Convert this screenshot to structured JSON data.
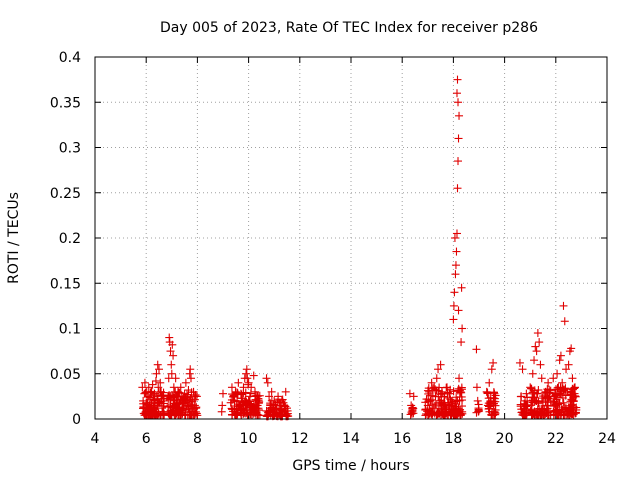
{
  "chart_data": {
    "type": "scatter",
    "title": "Day 005 of 2023, Rate Of TEC Index for receiver p286",
    "xlabel": "GPS time / hours",
    "ylabel": "ROTI / TECUs",
    "xlim": [
      4,
      24
    ],
    "ylim": [
      0,
      0.4
    ],
    "x_ticks": [
      4,
      6,
      8,
      10,
      12,
      14,
      16,
      18,
      20,
      22,
      24
    ],
    "x_tick_labels": [
      "4",
      "6",
      "8",
      "10",
      "12",
      "14",
      "16",
      "18",
      "20",
      "22",
      "24"
    ],
    "y_ticks": [
      0,
      0.05,
      0.1,
      0.15,
      0.2,
      0.25,
      0.3,
      0.35,
      0.4
    ],
    "y_tick_labels": [
      "0",
      "0.05",
      "0.1",
      "0.15",
      "0.2",
      "0.25",
      "0.3",
      "0.35",
      "0.4"
    ],
    "grid": true,
    "marker": "+",
    "color": "#e00000",
    "series": [
      {
        "name": "ROTI",
        "points": [
          [
            5.85,
            0.035
          ],
          [
            5.88,
            0.02
          ],
          [
            5.9,
            0.012
          ],
          [
            5.93,
            0.028
          ],
          [
            5.95,
            0.04
          ],
          [
            5.98,
            0.008
          ],
          [
            6.0,
            0.018
          ],
          [
            6.02,
            0.03
          ],
          [
            6.05,
            0.012
          ],
          [
            6.08,
            0.025
          ],
          [
            6.1,
            0.035
          ],
          [
            6.12,
            0.015
          ],
          [
            6.15,
            0.022
          ],
          [
            6.18,
            0.01
          ],
          [
            6.2,
            0.03
          ],
          [
            6.22,
            0.018
          ],
          [
            6.25,
            0.038
          ],
          [
            6.28,
            0.012
          ],
          [
            6.3,
            0.02
          ],
          [
            6.32,
            0.028
          ],
          [
            6.35,
            0.015
          ],
          [
            6.38,
            0.042
          ],
          [
            6.4,
            0.05
          ],
          [
            6.42,
            0.025
          ],
          [
            6.45,
            0.06
          ],
          [
            6.47,
            0.035
          ],
          [
            6.5,
            0.055
          ],
          [
            6.52,
            0.018
          ],
          [
            6.55,
            0.04
          ],
          [
            6.58,
            0.03
          ],
          [
            6.6,
            0.022
          ],
          [
            6.62,
            0.012
          ],
          [
            6.65,
            0.008
          ],
          [
            6.68,
            0.02
          ],
          [
            6.85,
            0.025
          ],
          [
            6.88,
            0.045
          ],
          [
            6.9,
            0.09
          ],
          [
            6.92,
            0.085
          ],
          [
            6.95,
            0.075
          ],
          [
            6.98,
            0.06
          ],
          [
            7.0,
            0.05
          ],
          [
            7.02,
            0.082
          ],
          [
            7.05,
            0.07
          ],
          [
            7.08,
            0.035
          ],
          [
            7.1,
            0.02
          ],
          [
            7.12,
            0.03
          ],
          [
            7.15,
            0.045
          ],
          [
            7.18,
            0.015
          ],
          [
            7.2,
            0.025
          ],
          [
            7.22,
            0.01
          ],
          [
            7.25,
            0.03
          ],
          [
            7.3,
            0.018
          ],
          [
            7.35,
            0.035
          ],
          [
            7.4,
            0.022
          ],
          [
            7.45,
            0.012
          ],
          [
            7.5,
            0.028
          ],
          [
            7.55,
            0.04
          ],
          [
            7.6,
            0.015
          ],
          [
            7.65,
            0.032
          ],
          [
            7.7,
            0.05
          ],
          [
            7.72,
            0.055
          ],
          [
            7.75,
            0.045
          ],
          [
            7.8,
            0.02
          ],
          [
            7.85,
            0.03
          ],
          [
            7.9,
            0.015
          ],
          [
            7.95,
            0.012
          ],
          [
            7.98,
            0.025
          ],
          [
            8.95,
            0.008
          ],
          [
            8.97,
            0.015
          ],
          [
            9.0,
            0.028
          ],
          [
            9.3,
            0.018
          ],
          [
            9.35,
            0.035
          ],
          [
            9.4,
            0.025
          ],
          [
            9.45,
            0.012
          ],
          [
            9.5,
            0.03
          ],
          [
            9.55,
            0.02
          ],
          [
            9.6,
            0.04
          ],
          [
            9.65,
            0.015
          ],
          [
            9.7,
            0.028
          ],
          [
            9.75,
            0.018
          ],
          [
            9.8,
            0.035
          ],
          [
            9.85,
            0.045
          ],
          [
            9.9,
            0.05
          ],
          [
            9.93,
            0.055
          ],
          [
            9.95,
            0.045
          ],
          [
            9.98,
            0.038
          ],
          [
            10.0,
            0.04
          ],
          [
            10.05,
            0.025
          ],
          [
            10.1,
            0.035
          ],
          [
            10.15,
            0.012
          ],
          [
            10.2,
            0.048
          ],
          [
            10.25,
            0.03
          ],
          [
            10.3,
            0.02
          ],
          [
            10.35,
            0.015
          ],
          [
            10.4,
            0.01
          ],
          [
            10.7,
            0.045
          ],
          [
            10.75,
            0.04
          ],
          [
            10.8,
            0.025
          ],
          [
            10.85,
            0.015
          ],
          [
            10.9,
            0.03
          ],
          [
            10.95,
            0.01
          ],
          [
            11.0,
            0.02
          ],
          [
            11.05,
            0.015
          ],
          [
            11.1,
            0.012
          ],
          [
            11.15,
            0.025
          ],
          [
            11.2,
            0.018
          ],
          [
            11.25,
            0.01
          ],
          [
            11.3,
            0.02
          ],
          [
            11.35,
            0.008
          ],
          [
            11.4,
            0.015
          ],
          [
            11.45,
            0.03
          ],
          [
            11.5,
            0.012
          ],
          [
            16.3,
            0.028
          ],
          [
            16.35,
            0.015
          ],
          [
            16.4,
            0.01
          ],
          [
            16.45,
            0.025
          ],
          [
            16.9,
            0.01
          ],
          [
            16.95,
            0.022
          ],
          [
            17.0,
            0.015
          ],
          [
            17.05,
            0.03
          ],
          [
            17.1,
            0.02
          ],
          [
            17.15,
            0.04
          ],
          [
            17.2,
            0.012
          ],
          [
            17.25,
            0.035
          ],
          [
            17.3,
            0.025
          ],
          [
            17.35,
            0.045
          ],
          [
            17.4,
            0.055
          ],
          [
            17.45,
            0.02
          ],
          [
            17.5,
            0.06
          ],
          [
            17.55,
            0.03
          ],
          [
            17.6,
            0.015
          ],
          [
            17.65,
            0.025
          ],
          [
            17.7,
            0.012
          ],
          [
            17.75,
            0.035
          ],
          [
            17.8,
            0.018
          ],
          [
            17.85,
            0.028
          ],
          [
            17.9,
            0.015
          ],
          [
            17.95,
            0.02
          ],
          [
            18.0,
            0.11
          ],
          [
            18.02,
            0.125
          ],
          [
            18.04,
            0.14
          ],
          [
            18.06,
            0.2
          ],
          [
            18.08,
            0.16
          ],
          [
            18.1,
            0.17
          ],
          [
            18.12,
            0.185
          ],
          [
            18.14,
            0.205
          ],
          [
            18.16,
            0.255
          ],
          [
            18.18,
            0.285
          ],
          [
            18.2,
            0.31
          ],
          [
            18.22,
            0.335
          ],
          [
            18.14,
            0.36
          ],
          [
            18.16,
            0.375
          ],
          [
            18.18,
            0.35
          ],
          [
            18.2,
            0.12
          ],
          [
            18.22,
            0.045
          ],
          [
            18.24,
            0.02
          ],
          [
            18.26,
            0.01
          ],
          [
            18.28,
            0.03
          ],
          [
            18.3,
            0.085
          ],
          [
            18.32,
            0.145
          ],
          [
            18.34,
            0.1
          ],
          [
            18.9,
            0.077
          ],
          [
            18.92,
            0.035
          ],
          [
            18.95,
            0.02
          ],
          [
            18.98,
            0.012
          ],
          [
            19.3,
            0.03
          ],
          [
            19.35,
            0.015
          ],
          [
            19.4,
            0.04
          ],
          [
            19.45,
            0.02
          ],
          [
            19.5,
            0.055
          ],
          [
            19.55,
            0.062
          ],
          [
            19.6,
            0.028
          ],
          [
            19.65,
            0.01
          ],
          [
            20.6,
            0.062
          ],
          [
            20.65,
            0.025
          ],
          [
            20.7,
            0.055
          ],
          [
            20.75,
            0.012
          ],
          [
            20.8,
            0.02
          ],
          [
            20.85,
            0.028
          ],
          [
            20.9,
            0.015
          ],
          [
            21.0,
            0.035
          ],
          [
            21.05,
            0.02
          ],
          [
            21.1,
            0.05
          ],
          [
            21.15,
            0.065
          ],
          [
            21.2,
            0.08
          ],
          [
            21.25,
            0.075
          ],
          [
            21.3,
            0.095
          ],
          [
            21.35,
            0.085
          ],
          [
            21.4,
            0.06
          ],
          [
            21.45,
            0.045
          ],
          [
            21.5,
            0.02
          ],
          [
            21.55,
            0.01
          ],
          [
            21.6,
            0.03
          ],
          [
            21.65,
            0.015
          ],
          [
            21.7,
            0.04
          ],
          [
            21.75,
            0.025
          ],
          [
            21.8,
            0.02
          ],
          [
            21.9,
            0.045
          ],
          [
            21.95,
            0.025
          ],
          [
            22.0,
            0.015
          ],
          [
            22.05,
            0.05
          ],
          [
            22.1,
            0.035
          ],
          [
            22.15,
            0.065
          ],
          [
            22.2,
            0.07
          ],
          [
            22.25,
            0.04
          ],
          [
            22.3,
            0.125
          ],
          [
            22.35,
            0.108
          ],
          [
            22.4,
            0.055
          ],
          [
            22.45,
            0.03
          ],
          [
            22.5,
            0.06
          ],
          [
            22.55,
            0.075
          ],
          [
            22.6,
            0.078
          ],
          [
            22.65,
            0.045
          ],
          [
            22.7,
            0.02
          ],
          [
            22.75,
            0.035
          ],
          [
            22.8,
            0.01
          ]
        ]
      }
    ],
    "band_clusters": [
      {
        "x_range": [
          5.85,
          6.7
        ],
        "y_range": [
          0.004,
          0.032
        ],
        "count": 90
      },
      {
        "x_range": [
          6.85,
          8.0
        ],
        "y_range": [
          0.004,
          0.03
        ],
        "count": 120
      },
      {
        "x_range": [
          9.3,
          10.45
        ],
        "y_range": [
          0.004,
          0.03
        ],
        "count": 110
      },
      {
        "x_range": [
          10.7,
          11.55
        ],
        "y_range": [
          0.003,
          0.022
        ],
        "count": 70
      },
      {
        "x_range": [
          16.3,
          16.45
        ],
        "y_range": [
          0.005,
          0.015
        ],
        "count": 8
      },
      {
        "x_range": [
          16.9,
          18.35
        ],
        "y_range": [
          0.004,
          0.035
        ],
        "count": 150
      },
      {
        "x_range": [
          18.9,
          19.0
        ],
        "y_range": [
          0.005,
          0.02
        ],
        "count": 6
      },
      {
        "x_range": [
          19.3,
          19.65
        ],
        "y_range": [
          0.004,
          0.03
        ],
        "count": 35
      },
      {
        "x_range": [
          20.6,
          20.9
        ],
        "y_range": [
          0.004,
          0.025
        ],
        "count": 30
      },
      {
        "x_range": [
          21.0,
          21.8
        ],
        "y_range": [
          0.004,
          0.035
        ],
        "count": 90
      },
      {
        "x_range": [
          21.9,
          22.8
        ],
        "y_range": [
          0.004,
          0.035
        ],
        "count": 110
      }
    ]
  }
}
